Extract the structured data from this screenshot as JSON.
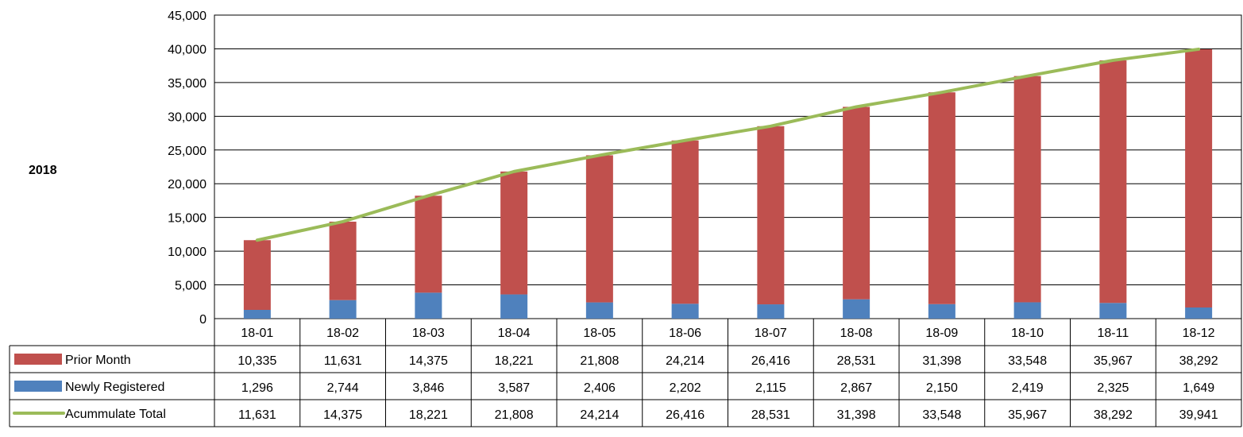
{
  "side_label": "2018",
  "chart_data": {
    "type": "bar",
    "stacked": true,
    "categories": [
      "18-01",
      "18-02",
      "18-03",
      "18-04",
      "18-05",
      "18-06",
      "18-07",
      "18-08",
      "18-09",
      "18-10",
      "18-11",
      "18-12"
    ],
    "ylim": [
      0,
      45000
    ],
    "yticks": [
      "0",
      "5,000",
      "10,000",
      "15,000",
      "20,000",
      "25,000",
      "30,000",
      "35,000",
      "40,000",
      "45,000"
    ],
    "grid": true,
    "legend": "data-table",
    "series": [
      {
        "name": "Prior Month",
        "kind": "bar",
        "color": "#c0504d",
        "values": [
          10335,
          11631,
          14375,
          18221,
          21808,
          24214,
          26416,
          28531,
          31398,
          33548,
          35967,
          38292
        ],
        "labels": [
          "10,335",
          "11,631",
          "14,375",
          "18,221",
          "21,808",
          "24,214",
          "26,416",
          "28,531",
          "31,398",
          "33,548",
          "35,967",
          "38,292"
        ]
      },
      {
        "name": "Newly Registered",
        "kind": "bar",
        "color": "#4f81bd",
        "values": [
          1296,
          2744,
          3846,
          3587,
          2406,
          2202,
          2115,
          2867,
          2150,
          2419,
          2325,
          1649
        ],
        "labels": [
          "1,296",
          "2,744",
          "3,846",
          "3,587",
          "2,406",
          "2,202",
          "2,115",
          "2,867",
          "2,150",
          "2,419",
          "2,325",
          "1,649"
        ]
      },
      {
        "name": "Acummulate Total",
        "kind": "line",
        "color": "#9bbb59",
        "values": [
          11631,
          14375,
          18221,
          21808,
          24214,
          26416,
          28531,
          31398,
          33548,
          35967,
          38292,
          39941
        ],
        "labels": [
          "11,631",
          "14,375",
          "18,221",
          "21,808",
          "24,214",
          "26,416",
          "28,531",
          "31,398",
          "33,548",
          "35,967",
          "38,292",
          "39,941"
        ]
      }
    ]
  }
}
